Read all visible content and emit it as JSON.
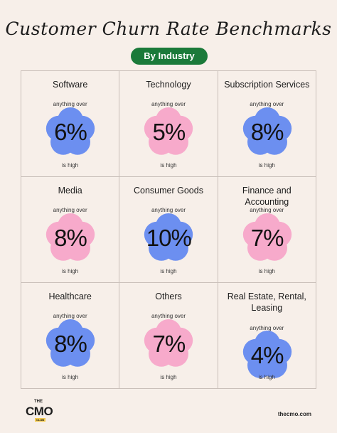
{
  "header": {
    "title": "Customer Churn Rate Benchmarks",
    "subtitle": "By Industry"
  },
  "colors": {
    "background": "#f7efe9",
    "pill": "#1b7a3a",
    "flower_blue": "#6c8ff0",
    "flower_pink": "#f7aacb"
  },
  "cells": [
    {
      "category": "Software",
      "over": "anything over",
      "value": "6%",
      "high": "is high",
      "color": "blue"
    },
    {
      "category": "Technology",
      "over": "anything over",
      "value": "5%",
      "high": "is high",
      "color": "pink"
    },
    {
      "category": "Subscription Services",
      "over": "anything over",
      "value": "8%",
      "high": "is high",
      "color": "blue"
    },
    {
      "category": "Media",
      "over": "anything over",
      "value": "8%",
      "high": "is high",
      "color": "pink"
    },
    {
      "category": "Consumer Goods",
      "over": "anything over",
      "value": "10%",
      "high": "is high",
      "color": "blue"
    },
    {
      "category": "Finance and Accounting",
      "over": "anything over",
      "value": "7%",
      "high": "is high",
      "color": "pink"
    },
    {
      "category": "Healthcare",
      "over": "anything over",
      "value": "8%",
      "high": "is high",
      "color": "blue"
    },
    {
      "category": "Others",
      "over": "anything over",
      "value": "7%",
      "high": "is high",
      "color": "pink"
    },
    {
      "category": "Real Estate, Rental, Leasing",
      "over": "anything over",
      "value": "4%",
      "high": "is high",
      "color": "blue"
    }
  ],
  "footer": {
    "logo_the": "THE",
    "logo_cmo": "CMO",
    "logo_club": "CLUB",
    "site": "thecmo.com"
  }
}
